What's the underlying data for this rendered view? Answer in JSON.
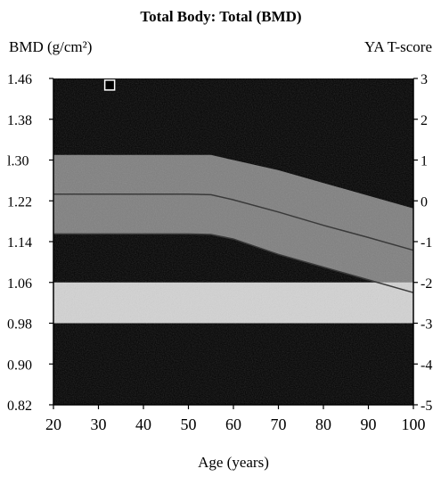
{
  "chart_data": {
    "type": "area",
    "title": "Total Body: Total (BMD)",
    "ylabel": "BMD (g/cm²)",
    "ylabel_right": "YA T-score",
    "xlabel": "Age (years)",
    "xlim": [
      20,
      100
    ],
    "ylim": [
      0.82,
      1.46
    ],
    "x_ticks": [
      20,
      30,
      40,
      50,
      60,
      70,
      80,
      90,
      100
    ],
    "y_ticks": [
      0.82,
      0.9,
      0.98,
      1.06,
      1.14,
      1.22,
      1.3,
      1.38,
      1.46
    ],
    "y_tick_labels": [
      "0.82",
      "0.90",
      "0.98",
      "1.06",
      "1.14",
      "1.22",
      "l.30",
      "1.38",
      "1.46"
    ],
    "right_ticks": [
      3,
      2,
      1,
      0,
      -1,
      -2,
      -3,
      -4,
      -5
    ],
    "bands": [
      {
        "name": "normal",
        "x": [
          20,
          30,
          40,
          50,
          55,
          60,
          70,
          80,
          90,
          100
        ],
        "y_low": [
          1.155,
          1.155,
          1.155,
          1.155,
          1.154,
          1.145,
          1.115,
          1.09,
          1.065,
          1.04
        ],
        "y_high": [
          1.31,
          1.31,
          1.31,
          1.31,
          1.31,
          1.3,
          1.28,
          1.255,
          1.23,
          1.205
        ]
      },
      {
        "name": "osteopenia",
        "y_low": 0.98,
        "y_high": 1.06
      }
    ],
    "reference_line": {
      "x": [
        20,
        30,
        40,
        50,
        55,
        60,
        70,
        80,
        90,
        100
      ],
      "y": [
        1.233,
        1.233,
        1.233,
        1.233,
        1.232,
        1.222,
        1.198,
        1.172,
        1.148,
        1.123
      ]
    },
    "points": [
      {
        "x": 32.5,
        "y": 1.447
      }
    ],
    "grid": false,
    "colors": {
      "background": "#000000",
      "normal_band": "#7f7f7f",
      "osteopenia_band": "#d3d3d3",
      "lines": "#3a3a3a",
      "point": "#ffffff"
    }
  }
}
